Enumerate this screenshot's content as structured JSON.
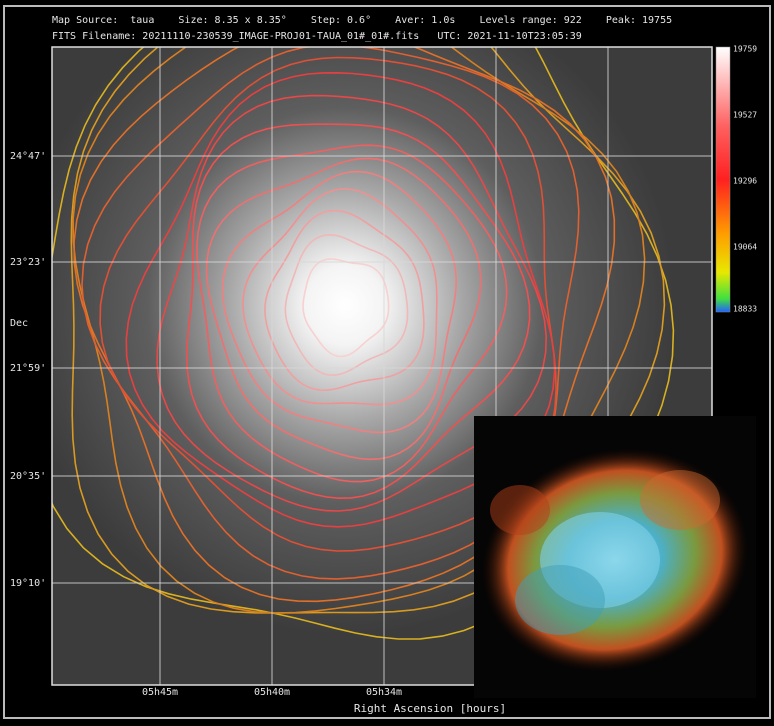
{
  "header": {
    "line1": "Map Source:  taua    Size: 8.35 x 8.35°    Step: 0.6°    Aver: 1.0s    Levels range: 922    Peak: 19755",
    "line2": "FITS Filename: 20211110-230539_IMAGE-PROJ01-TAUA_01#_01#.fits   UTC: 2021-11-10T23:05:39"
  },
  "axes": {
    "y_label": "Dec",
    "y_ticks": [
      "24°47'",
      "23°23'",
      "21°59'",
      "20°35'",
      "19°10'"
    ],
    "x_label": "Right Ascension [hours]",
    "x_ticks": [
      "05h45m",
      "05h40m",
      "05h34m"
    ]
  },
  "colorbar": {
    "ticks": [
      "19759",
      "19527",
      "19296",
      "19064",
      "18833"
    ]
  }
}
